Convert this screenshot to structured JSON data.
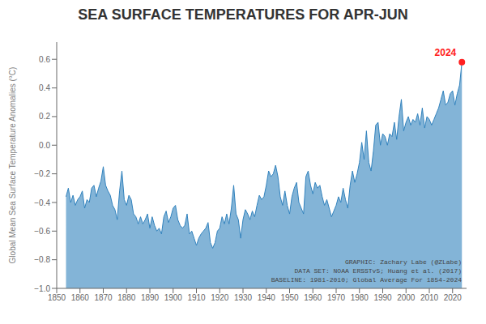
{
  "chart_data": {
    "type": "area",
    "title": "SEA SURFACE TEMPERATURES FOR APR-JUN",
    "ylabel": "Global Mean Sea Surface Temperature Anomalies (°C)",
    "x": [
      1854,
      1855,
      1856,
      1857,
      1858,
      1859,
      1860,
      1861,
      1862,
      1863,
      1864,
      1865,
      1866,
      1867,
      1868,
      1869,
      1870,
      1871,
      1872,
      1873,
      1874,
      1875,
      1876,
      1877,
      1878,
      1879,
      1880,
      1881,
      1882,
      1883,
      1884,
      1885,
      1886,
      1887,
      1888,
      1889,
      1890,
      1891,
      1892,
      1893,
      1894,
      1895,
      1896,
      1897,
      1898,
      1899,
      1900,
      1901,
      1902,
      1903,
      1904,
      1905,
      1906,
      1907,
      1908,
      1909,
      1910,
      1911,
      1912,
      1913,
      1914,
      1915,
      1916,
      1917,
      1918,
      1919,
      1920,
      1921,
      1922,
      1923,
      1924,
      1925,
      1926,
      1927,
      1928,
      1929,
      1930,
      1931,
      1932,
      1933,
      1934,
      1935,
      1936,
      1937,
      1938,
      1939,
      1940,
      1941,
      1942,
      1943,
      1944,
      1945,
      1946,
      1947,
      1948,
      1949,
      1950,
      1951,
      1952,
      1953,
      1954,
      1955,
      1956,
      1957,
      1958,
      1959,
      1960,
      1961,
      1962,
      1963,
      1964,
      1965,
      1966,
      1967,
      1968,
      1969,
      1970,
      1971,
      1972,
      1973,
      1974,
      1975,
      1976,
      1977,
      1978,
      1979,
      1980,
      1981,
      1982,
      1983,
      1984,
      1985,
      1986,
      1987,
      1988,
      1989,
      1990,
      1991,
      1992,
      1993,
      1994,
      1995,
      1996,
      1997,
      1998,
      1999,
      2000,
      2001,
      2002,
      2003,
      2004,
      2005,
      2006,
      2007,
      2008,
      2009,
      2010,
      2011,
      2012,
      2013,
      2014,
      2015,
      2016,
      2017,
      2018,
      2019,
      2020,
      2021,
      2022,
      2023,
      2024
    ],
    "values": [
      -0.36,
      -0.3,
      -0.4,
      -0.35,
      -0.42,
      -0.38,
      -0.36,
      -0.32,
      -0.44,
      -0.38,
      -0.4,
      -0.3,
      -0.28,
      -0.36,
      -0.3,
      -0.25,
      -0.15,
      -0.28,
      -0.32,
      -0.35,
      -0.42,
      -0.45,
      -0.52,
      -0.32,
      -0.18,
      -0.38,
      -0.42,
      -0.35,
      -0.38,
      -0.48,
      -0.5,
      -0.55,
      -0.5,
      -0.55,
      -0.52,
      -0.48,
      -0.58,
      -0.5,
      -0.56,
      -0.6,
      -0.58,
      -0.62,
      -0.5,
      -0.46,
      -0.54,
      -0.5,
      -0.44,
      -0.42,
      -0.52,
      -0.56,
      -0.58,
      -0.56,
      -0.48,
      -0.62,
      -0.6,
      -0.65,
      -0.7,
      -0.65,
      -0.62,
      -0.6,
      -0.58,
      -0.54,
      -0.68,
      -0.72,
      -0.68,
      -0.6,
      -0.58,
      -0.5,
      -0.55,
      -0.48,
      -0.55,
      -0.44,
      -0.28,
      -0.48,
      -0.52,
      -0.65,
      -0.52,
      -0.45,
      -0.48,
      -0.52,
      -0.46,
      -0.5,
      -0.42,
      -0.35,
      -0.38,
      -0.36,
      -0.28,
      -0.18,
      -0.22,
      -0.2,
      -0.14,
      -0.22,
      -0.36,
      -0.42,
      -0.32,
      -0.42,
      -0.48,
      -0.36,
      -0.3,
      -0.26,
      -0.4,
      -0.44,
      -0.48,
      -0.22,
      -0.18,
      -0.28,
      -0.34,
      -0.26,
      -0.3,
      -0.28,
      -0.36,
      -0.42,
      -0.38,
      -0.44,
      -0.5,
      -0.46,
      -0.42,
      -0.36,
      -0.4,
      -0.3,
      -0.38,
      -0.44,
      -0.28,
      -0.18,
      -0.26,
      -0.2,
      -0.12,
      0.02,
      -0.1,
      0.1,
      -0.12,
      -0.18,
      -0.04,
      0.14,
      0.16,
      0.0,
      0.08,
      0.06,
      0.0,
      0.08,
      0.06,
      0.16,
      0.04,
      0.2,
      0.32,
      0.1,
      0.16,
      0.2,
      0.14,
      0.18,
      0.16,
      0.22,
      0.14,
      0.26,
      0.12,
      0.2,
      0.18,
      0.14,
      0.18,
      0.22,
      0.26,
      0.32,
      0.38,
      0.28,
      0.3,
      0.36,
      0.38,
      0.28,
      0.36,
      0.42,
      0.58
    ],
    "xlim": [
      1850,
      2026
    ],
    "ylim": [
      -1.0,
      0.72
    ],
    "xticks": [
      1850,
      1860,
      1870,
      1880,
      1890,
      1900,
      1910,
      1920,
      1930,
      1940,
      1950,
      1960,
      1970,
      1980,
      1990,
      2000,
      2010,
      2020
    ],
    "yticks": [
      0.6,
      0.4,
      0.2,
      {
        "value": 0.0,
        "label": "0.0"
      },
      {
        "value": -0.2,
        "label": "−0.2"
      },
      {
        "value": -0.4,
        "label": "−0.4"
      },
      {
        "value": -0.6,
        "label": "−0.6"
      },
      {
        "value": -0.8,
        "label": "−0.8"
      },
      {
        "value": -1.0,
        "label": "−1.0"
      }
    ],
    "grid": false,
    "annotations": [
      {
        "text": "2024",
        "x": 2024,
        "y": 0.58,
        "color": "#ff2020"
      },
      {
        "text": "GRAPHIC: Zachary Labe (@ZLabe)\nDATA SET: NOAA ERSSTv5; Huang et al. (2017)\nBASELINE: 1981-2010; Global Average For 1854-2024"
      }
    ]
  }
}
